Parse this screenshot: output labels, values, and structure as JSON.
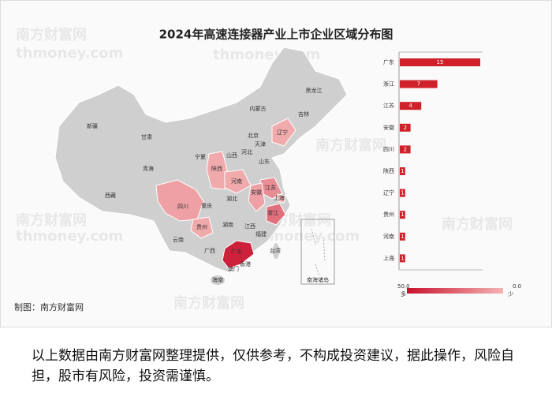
{
  "title": "2024年高速连接器产业上市企业区域分布图",
  "map": {
    "labels": [
      "黑龙江",
      "吉林",
      "辽宁",
      "内蒙古",
      "北京",
      "天津",
      "河北",
      "山西",
      "山东",
      "新疆",
      "甘肃",
      "宁夏",
      "陕西",
      "青海",
      "西藏",
      "四川",
      "重庆",
      "河南",
      "湖北",
      "安徽",
      "江苏",
      "上海",
      "浙江",
      "贵州",
      "湖南",
      "江西",
      "福建",
      "云南",
      "广西",
      "广东",
      "台湾",
      "海南",
      "香港",
      "澳门"
    ],
    "south_sea_label": "南海诸岛"
  },
  "chart_data": {
    "type": "bar",
    "orientation": "horizontal",
    "categories": [
      "广东",
      "浙江",
      "江苏",
      "安徽",
      "四川",
      "陕西",
      "辽宁",
      "贵州",
      "河南",
      "上海"
    ],
    "values": [
      15,
      7,
      4,
      2,
      2,
      1,
      1,
      1,
      1,
      1
    ],
    "color": "#d0202a",
    "color_scale": {
      "max": {
        "value": 50,
        "label": "50.0"
      },
      "min": {
        "value": 0,
        "label": "0.0"
      },
      "max_label": "多",
      "min_label": "少",
      "max_color": "#c8102e",
      "min_color": "#f4b4b4"
    }
  },
  "credit": "制图：南方财富网",
  "watermarks": [
    "南方财富网",
    "thmoney.com"
  ],
  "disclaimer": "以上数据由南方财富网整理提供，仅供参考，不构成投资建议，据此操作，风险自担，股市有风险，投资需谨慎。"
}
